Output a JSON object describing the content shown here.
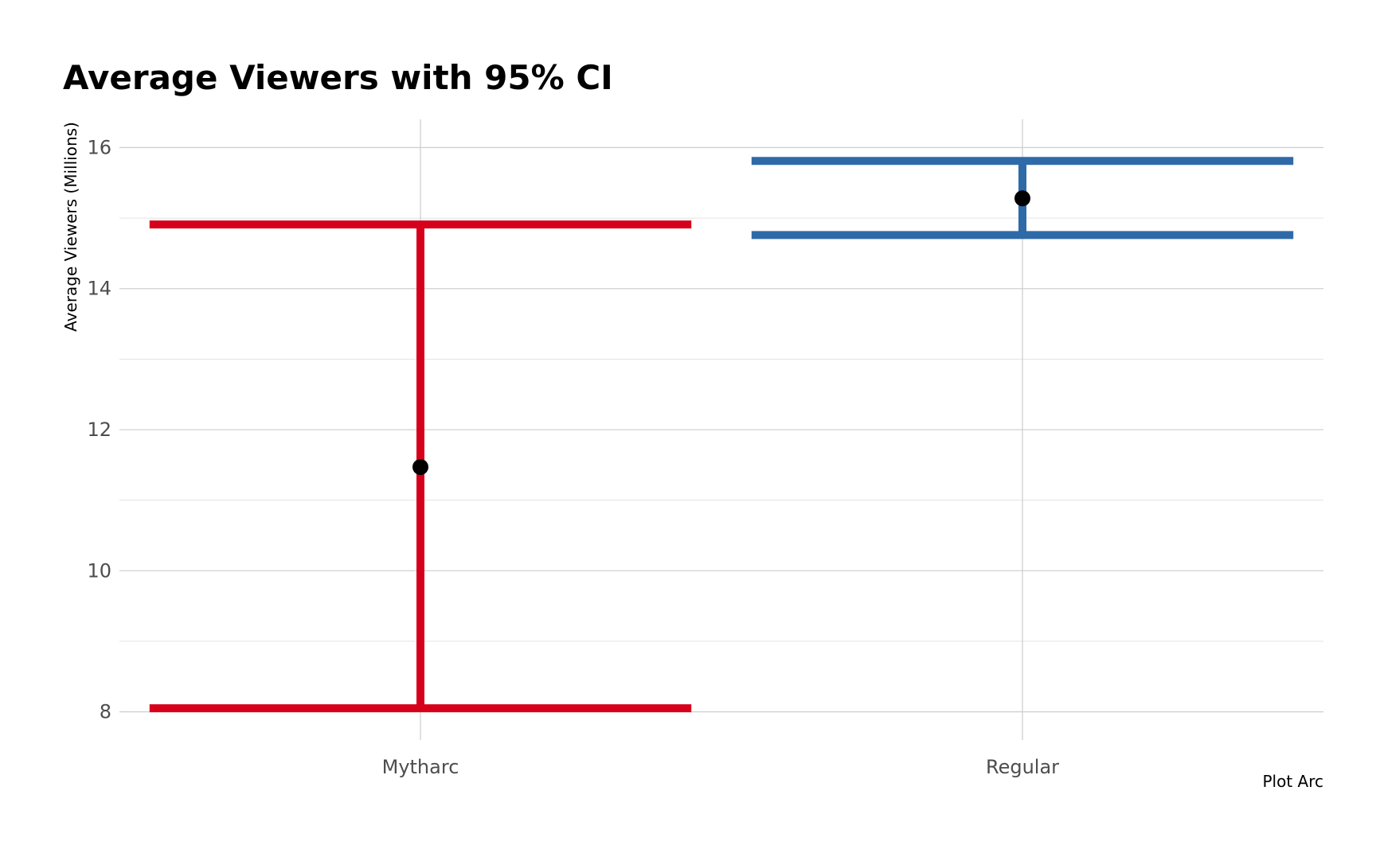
{
  "chart_data": {
    "type": "errorbar",
    "title": "Average Viewers with 95% CI",
    "xlabel": "Plot Arc",
    "ylabel": "Average Viewers (Millions)",
    "categories": [
      "Mytharc",
      "Regular"
    ],
    "mean": [
      11.47,
      15.28
    ],
    "ci_low": [
      8.05,
      14.76
    ],
    "ci_high": [
      14.91,
      15.81
    ],
    "colors": [
      "#d7001b",
      "#2f6aa8"
    ],
    "point_color": "#000000",
    "ylim": [
      7.6,
      16.4
    ],
    "yticks": [
      8,
      10,
      12,
      14,
      16
    ],
    "ytick_labels": [
      "8",
      "10",
      "12",
      "14",
      "16"
    ],
    "grid": true
  }
}
